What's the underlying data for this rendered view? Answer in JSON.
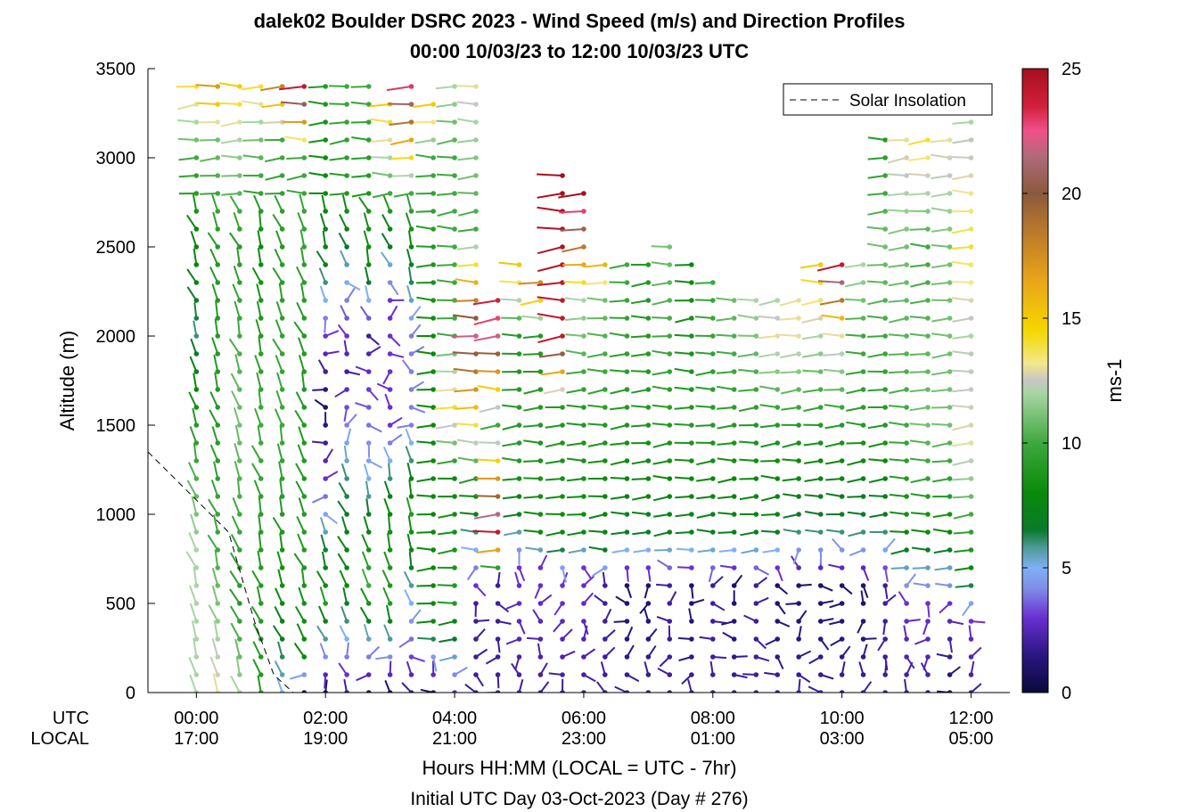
{
  "chart_data": {
    "type": "wind-barb-profile",
    "title_line1": "dalek02 Boulder DSRC 2023 - Wind Speed (m/s) and Direction Profiles",
    "title_line2": "00:00 10/03/23 to 12:00 10/03/23  UTC",
    "ylabel": "Altitude (m)",
    "ylim": [
      0,
      3500
    ],
    "yticks": [
      "0",
      "500",
      "1000",
      "1500",
      "2000",
      "2500",
      "3000",
      "3500"
    ],
    "yvalues": [
      0,
      500,
      1000,
      1500,
      2000,
      2500,
      3000,
      3500
    ],
    "x_range_hours_utc": [
      -0.75,
      12.6
    ],
    "x_row_label_utc": "UTC",
    "x_row_label_local": "LOCAL",
    "xticks_utc": [
      "00:00",
      "02:00",
      "04:00",
      "06:00",
      "08:00",
      "10:00",
      "12:00"
    ],
    "xticks_local": [
      "17:00",
      "19:00",
      "21:00",
      "23:00",
      "01:00",
      "03:00",
      "05:00"
    ],
    "xtick_hours": [
      0,
      2,
      4,
      6,
      8,
      10,
      12
    ],
    "xlabel": "Hours HH:MM  (LOCAL = UTC - 7hr)",
    "footer": "Initial UTC Day 03-Oct-2023 (Day # 276)",
    "legend": {
      "label": "Solar Insolation",
      "placement": "top-right",
      "style": "dashed"
    },
    "solar_insolation_line": [
      [
        -0.75,
        1350
      ],
      [
        0.5,
        900
      ],
      [
        0.9,
        400
      ],
      [
        1.2,
        100
      ],
      [
        1.5,
        0
      ],
      [
        12.6,
        0
      ]
    ],
    "colorbar": {
      "label": "ms-1",
      "min": 0,
      "max": 25,
      "ticks": [
        "0",
        "5",
        "10",
        "15",
        "20",
        "25"
      ],
      "tick_values": [
        0,
        5,
        10,
        15,
        20,
        25
      ],
      "colors": [
        [
          0,
          "#0b0a3a"
        ],
        [
          1.5,
          "#2a1680"
        ],
        [
          3,
          "#6a2fd0"
        ],
        [
          4.2,
          "#7f8fe8"
        ],
        [
          5,
          "#7fb0f5"
        ],
        [
          5.8,
          "#4f9a9a"
        ],
        [
          6.5,
          "#0a7a2a"
        ],
        [
          8,
          "#0a8a0a"
        ],
        [
          10,
          "#3ea83e"
        ],
        [
          12,
          "#a9d5a4"
        ],
        [
          12.5,
          "#c6c6c6"
        ],
        [
          13.2,
          "#f2e88a"
        ],
        [
          14.5,
          "#f5d700"
        ],
        [
          16.5,
          "#e8a51a"
        ],
        [
          18.5,
          "#b9782a"
        ],
        [
          20,
          "#8b5a3c"
        ],
        [
          21.5,
          "#b06a7a"
        ],
        [
          22.5,
          "#f0508a"
        ],
        [
          23.5,
          "#d1203c"
        ],
        [
          25,
          "#a50f1e"
        ]
      ]
    },
    "profile_columns": [
      {
        "t": 0.0,
        "top": 3400,
        "s": [
          [
            0,
            12
          ],
          [
            800,
            12
          ],
          [
            1500,
            9
          ],
          [
            2000,
            6
          ],
          [
            2600,
            8
          ],
          [
            3000,
            10
          ],
          [
            3400,
            14
          ]
        ]
      },
      {
        "t": 0.33,
        "top": 3400,
        "s": [
          [
            0,
            13
          ],
          [
            800,
            10
          ],
          [
            1500,
            9
          ],
          [
            2500,
            9
          ],
          [
            3100,
            11
          ],
          [
            3400,
            17
          ]
        ]
      },
      {
        "t": 0.67,
        "top": 3400,
        "s": [
          [
            0,
            12
          ],
          [
            500,
            9
          ],
          [
            1500,
            11
          ],
          [
            2500,
            9
          ],
          [
            3100,
            12
          ],
          [
            3400,
            15
          ]
        ]
      },
      {
        "t": 1.0,
        "top": 3400,
        "s": [
          [
            0,
            9
          ],
          [
            800,
            9
          ],
          [
            1500,
            10
          ],
          [
            2500,
            8
          ],
          [
            3100,
            11
          ],
          [
            3400,
            14
          ]
        ]
      },
      {
        "t": 1.33,
        "top": 3400,
        "s": [
          [
            0,
            5
          ],
          [
            500,
            8
          ],
          [
            1500,
            10
          ],
          [
            2500,
            9
          ],
          [
            3100,
            10
          ],
          [
            3400,
            18
          ]
        ]
      },
      {
        "t": 1.67,
        "top": 3400,
        "s": [
          [
            0,
            1
          ],
          [
            200,
            8
          ],
          [
            800,
            9
          ],
          [
            2000,
            9
          ],
          [
            3000,
            10
          ],
          [
            3400,
            24
          ]
        ]
      },
      {
        "t": 2.0,
        "top": 3400,
        "s": [
          [
            0,
            1
          ],
          [
            500,
            9
          ],
          [
            1200,
            3
          ],
          [
            1600,
            1
          ],
          [
            2000,
            3
          ],
          [
            2400,
            7
          ],
          [
            3400,
            9
          ]
        ]
      },
      {
        "t": 2.33,
        "top": 3400,
        "s": [
          [
            0,
            2
          ],
          [
            600,
            8
          ],
          [
            1200,
            6
          ],
          [
            1800,
            2
          ],
          [
            2200,
            4
          ],
          [
            2800,
            9
          ],
          [
            3400,
            10
          ]
        ]
      },
      {
        "t": 2.67,
        "top": 3400,
        "s": [
          [
            0,
            1
          ],
          [
            600,
            10
          ],
          [
            1200,
            5
          ],
          [
            2000,
            2
          ],
          [
            2400,
            8
          ],
          [
            3400,
            10
          ]
        ]
      },
      {
        "t": 3.0,
        "top": 3300,
        "s": [
          [
            0,
            1
          ],
          [
            500,
            9
          ],
          [
            1000,
            8
          ],
          [
            1500,
            3
          ],
          [
            2200,
            3
          ],
          [
            2800,
            10
          ],
          [
            3300,
            15
          ]
        ]
      },
      {
        "t": 3.33,
        "top": 3400,
        "s": [
          [
            0,
            2
          ],
          [
            500,
            5
          ],
          [
            1000,
            9
          ],
          [
            1500,
            4
          ],
          [
            2000,
            4
          ],
          [
            2800,
            10
          ],
          [
            3400,
            23
          ]
        ]
      },
      {
        "t": 3.67,
        "top": 3300,
        "s": [
          [
            0,
            1
          ],
          [
            400,
            8
          ],
          [
            1300,
            8
          ],
          [
            2000,
            8
          ],
          [
            3000,
            10
          ],
          [
            3300,
            15
          ]
        ]
      },
      {
        "t": 4.0,
        "top": 3400,
        "s": [
          [
            0,
            3
          ],
          [
            500,
            9
          ],
          [
            1200,
            8
          ],
          [
            1600,
            14
          ],
          [
            2000,
            10
          ],
          [
            3000,
            10
          ],
          [
            3400,
            12
          ]
        ]
      },
      {
        "t": 4.33,
        "top": 3400,
        "s": [
          [
            0,
            2
          ],
          [
            500,
            2
          ],
          [
            1200,
            9
          ],
          [
            2000,
            22
          ],
          [
            2600,
            10
          ],
          [
            3200,
            12
          ],
          [
            3400,
            13
          ]
        ]
      },
      {
        "t": 4.67,
        "top": 2250,
        "s": [
          [
            0,
            2
          ],
          [
            600,
            2
          ],
          [
            900,
            24
          ],
          [
            1500,
            10
          ],
          [
            2000,
            22
          ],
          [
            2250,
            24
          ]
        ]
      },
      {
        "t": 5.0,
        "top": 2450,
        "s": [
          [
            0,
            2
          ],
          [
            700,
            3
          ],
          [
            1000,
            7
          ],
          [
            1300,
            9
          ],
          [
            2000,
            9
          ],
          [
            2450,
            16
          ]
        ]
      },
      {
        "t": 5.33,
        "top": 2350,
        "s": [
          [
            0,
            2
          ],
          [
            700,
            3
          ],
          [
            900,
            8
          ],
          [
            1500,
            9
          ],
          [
            2000,
            9
          ],
          [
            2350,
            19
          ]
        ]
      },
      {
        "t": 5.67,
        "top": 2900,
        "s": [
          [
            0,
            2
          ],
          [
            600,
            3
          ],
          [
            900,
            8
          ],
          [
            1600,
            9
          ],
          [
            2000,
            24
          ],
          [
            2900,
            25
          ]
        ]
      },
      {
        "t": 6.0,
        "top": 2800,
        "s": [
          [
            0,
            2
          ],
          [
            700,
            3
          ],
          [
            900,
            8
          ],
          [
            1600,
            9
          ],
          [
            2200,
            12
          ],
          [
            2800,
            25
          ]
        ]
      },
      {
        "t": 6.33,
        "top": 2450,
        "s": [
          [
            0,
            2
          ],
          [
            600,
            2
          ],
          [
            800,
            7
          ],
          [
            1500,
            9
          ],
          [
            2200,
            11
          ],
          [
            2450,
            17
          ]
        ]
      },
      {
        "t": 6.67,
        "top": 2400,
        "s": [
          [
            0,
            2
          ],
          [
            600,
            1
          ],
          [
            900,
            7
          ],
          [
            1600,
            9
          ],
          [
            2400,
            10
          ]
        ]
      },
      {
        "t": 7.0,
        "top": 2450,
        "s": [
          [
            0,
            2
          ],
          [
            600,
            1
          ],
          [
            900,
            7
          ],
          [
            1600,
            9
          ],
          [
            2450,
            9
          ]
        ]
      },
      {
        "t": 7.33,
        "top": 2500,
        "s": [
          [
            0,
            2
          ],
          [
            600,
            2
          ],
          [
            900,
            7
          ],
          [
            1500,
            9
          ],
          [
            2500,
            11
          ]
        ]
      },
      {
        "t": 7.67,
        "top": 2450,
        "s": [
          [
            0,
            2
          ],
          [
            600,
            1
          ],
          [
            900,
            7
          ],
          [
            1500,
            9
          ],
          [
            2450,
            8
          ]
        ]
      },
      {
        "t": 8.0,
        "top": 2300,
        "s": [
          [
            0,
            2
          ],
          [
            600,
            2
          ],
          [
            900,
            7
          ],
          [
            1500,
            9
          ],
          [
            2300,
            10
          ]
        ]
      },
      {
        "t": 8.33,
        "top": 2250,
        "s": [
          [
            0,
            2
          ],
          [
            600,
            1
          ],
          [
            900,
            7
          ],
          [
            1500,
            9
          ],
          [
            2250,
            11
          ]
        ]
      },
      {
        "t": 8.67,
        "top": 2200,
        "s": [
          [
            0,
            2
          ],
          [
            600,
            2
          ],
          [
            900,
            7
          ],
          [
            1500,
            9
          ],
          [
            2200,
            12
          ]
        ]
      },
      {
        "t": 9.0,
        "top": 2200,
        "s": [
          [
            0,
            2
          ],
          [
            600,
            1
          ],
          [
            900,
            7
          ],
          [
            1500,
            9
          ],
          [
            2000,
            13
          ],
          [
            2200,
            12
          ]
        ]
      },
      {
        "t": 9.33,
        "top": 2250,
        "s": [
          [
            0,
            2
          ],
          [
            600,
            1
          ],
          [
            900,
            6
          ],
          [
            1500,
            9
          ],
          [
            2000,
            13
          ],
          [
            2250,
            13
          ]
        ]
      },
      {
        "t": 9.67,
        "top": 2400,
        "s": [
          [
            0,
            2
          ],
          [
            600,
            1
          ],
          [
            900,
            6
          ],
          [
            1500,
            9
          ],
          [
            2000,
            12
          ],
          [
            2400,
            15
          ]
        ]
      },
      {
        "t": 10.0,
        "top": 2400,
        "s": [
          [
            0,
            2
          ],
          [
            600,
            1
          ],
          [
            900,
            6
          ],
          [
            1500,
            9
          ],
          [
            2000,
            13
          ],
          [
            2400,
            24
          ]
        ]
      },
      {
        "t": 10.33,
        "top": 2400,
        "s": [
          [
            0,
            2
          ],
          [
            600,
            1
          ],
          [
            900,
            6
          ],
          [
            1500,
            9
          ],
          [
            2000,
            10
          ],
          [
            2400,
            12
          ]
        ]
      },
      {
        "t": 10.67,
        "top": 3100,
        "s": [
          [
            0,
            2
          ],
          [
            600,
            2
          ],
          [
            900,
            6
          ],
          [
            1500,
            9
          ],
          [
            2500,
            11
          ],
          [
            3100,
            9
          ]
        ]
      },
      {
        "t": 11.0,
        "top": 3100,
        "s": [
          [
            0,
            2
          ],
          [
            500,
            3
          ],
          [
            900,
            8
          ],
          [
            1500,
            10
          ],
          [
            2500,
            11
          ],
          [
            3100,
            13
          ]
        ]
      },
      {
        "t": 11.33,
        "top": 3100,
        "s": [
          [
            0,
            2
          ],
          [
            500,
            3
          ],
          [
            900,
            8
          ],
          [
            1500,
            11
          ],
          [
            2500,
            10
          ],
          [
            3100,
            14
          ]
        ]
      },
      {
        "t": 11.67,
        "top": 3100,
        "s": [
          [
            0,
            1
          ],
          [
            500,
            3
          ],
          [
            900,
            8
          ],
          [
            1500,
            11
          ],
          [
            2500,
            11
          ],
          [
            3100,
            13
          ]
        ]
      },
      {
        "t": 12.0,
        "top": 3200,
        "s": [
          [
            0,
            2
          ],
          [
            400,
            3
          ],
          [
            700,
            8
          ],
          [
            1400,
            13
          ],
          [
            2000,
            12
          ],
          [
            2500,
            14
          ],
          [
            3200,
            12
          ]
        ]
      }
    ]
  }
}
